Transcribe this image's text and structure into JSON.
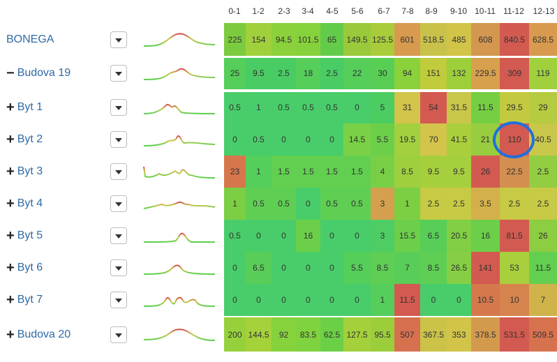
{
  "hours": [
    "0-1",
    "1-2",
    "2-3",
    "3-4",
    "4-5",
    "5-6",
    "6-7",
    "7-8",
    "8-9",
    "9-10",
    "10-11",
    "11-12",
    "12-13"
  ],
  "rows": [
    {
      "name": "BONEGA",
      "sign": "",
      "values": [
        "225",
        "154",
        "94.5",
        "101.5",
        "65",
        "149.5",
        "125.5",
        "601",
        "518.5",
        "485",
        "608",
        "840.5",
        "628.5"
      ],
      "colors": [
        "#7ccb3e",
        "#a0d13d",
        "#8bd13b",
        "#86d23c",
        "#62cc4a",
        "#9ac93b",
        "#a9cc3a",
        "#d89a4f",
        "#c9c24a",
        "#d2c449",
        "#d39750",
        "#d35a50",
        "#d89a4f"
      ]
    },
    {
      "name": "Budova 19",
      "sign": "−",
      "values": [
        "25",
        "9.5",
        "2.5",
        "18",
        "2.5",
        "22",
        "30",
        "94",
        "151",
        "132",
        "229.5",
        "309",
        "119"
      ],
      "colors": [
        "#55ce5a",
        "#49cc64",
        "#49cc64",
        "#55ce5a",
        "#49cc64",
        "#55ce5a",
        "#58cf54",
        "#8bd13b",
        "#c0cc3c",
        "#9dcf3a",
        "#d8a04d",
        "#d35a50",
        "#a0d13d"
      ]
    },
    {
      "name": "Byt 1",
      "sign": "+",
      "values": [
        "0.5",
        "1",
        "0.5",
        "0.5",
        "0.5",
        "0",
        "5",
        "31",
        "54",
        "31.5",
        "11.5",
        "29.5",
        "29"
      ],
      "colors": [
        "#49cd6a",
        "#49cd6a",
        "#49cd6a",
        "#49cd6a",
        "#49cd6a",
        "#49cd6a",
        "#4bcd62",
        "#d3c44b",
        "#d35a50",
        "#c9c74a",
        "#76ce43",
        "#c3ca40",
        "#b6cb3f"
      ]
    },
    {
      "name": "Byt 2",
      "sign": "+",
      "values": [
        "0",
        "0.5",
        "0",
        "0",
        "0",
        "14.5",
        "5.5",
        "19.5",
        "70",
        "41.5",
        "21",
        "110",
        "40.5"
      ],
      "colors": [
        "#49cd6a",
        "#49cd6a",
        "#49cd6a",
        "#49cd6a",
        "#49cd6a",
        "#7ad046",
        "#6ccf4a",
        "#a2d03f",
        "#d3c44b",
        "#a9cf3d",
        "#98cd3f",
        "#d35a50",
        "#c9c74a"
      ]
    },
    {
      "name": "Byt 3",
      "sign": "+",
      "values": [
        "23",
        "1",
        "1.5",
        "1.5",
        "1.5",
        "1.5",
        "4",
        "8.5",
        "9.5",
        "9.5",
        "26",
        "22.5",
        "2.5"
      ],
      "colors": [
        "#d7764c",
        "#55cf5c",
        "#62cf51",
        "#62cf51",
        "#62cf51",
        "#62cf51",
        "#78cf46",
        "#9ecf3f",
        "#a6cf3e",
        "#a6cf3e",
        "#d35a50",
        "#d38f4f",
        "#92cd42"
      ]
    },
    {
      "name": "Byt 4",
      "sign": "+",
      "values": [
        "1",
        "0.5",
        "0.5",
        "0",
        "0.5",
        "0.5",
        "3",
        "1",
        "2.5",
        "2.5",
        "3.5",
        "2.5",
        "2.5"
      ],
      "colors": [
        "#7ccf43",
        "#5fcf53",
        "#5fcf53",
        "#49cd6a",
        "#5fcf53",
        "#5fcf53",
        "#d4a04d",
        "#7ccf43",
        "#c7ca44",
        "#c7ca44",
        "#d3b04a",
        "#c7ca44",
        "#c7ca44"
      ]
    },
    {
      "name": "Byt 5",
      "sign": "+",
      "values": [
        "0.5",
        "0",
        "0",
        "16",
        "0",
        "0",
        "3",
        "15.5",
        "6.5",
        "20.5",
        "16",
        "81.5",
        "26"
      ],
      "colors": [
        "#49cd6a",
        "#49cd6a",
        "#49cd6a",
        "#6ccf4a",
        "#49cd6a",
        "#49cd6a",
        "#4ecd64",
        "#6ccf4a",
        "#58ce58",
        "#80cf44",
        "#6ccf4a",
        "#d35a50",
        "#8ccd42"
      ]
    },
    {
      "name": "Byt 6",
      "sign": "+",
      "values": [
        "0",
        "6.5",
        "0",
        "0",
        "0",
        "5.5",
        "8.5",
        "7",
        "8.5",
        "26.5",
        "141",
        "53",
        "11.5"
      ],
      "colors": [
        "#49cd6a",
        "#58ce58",
        "#49cd6a",
        "#49cd6a",
        "#49cd6a",
        "#55ce5a",
        "#5ecf54",
        "#58ce58",
        "#5ecf54",
        "#86cf44",
        "#d35a50",
        "#a9cf3d",
        "#62cf51"
      ]
    },
    {
      "name": "Byt 7",
      "sign": "+",
      "values": [
        "0",
        "0",
        "0",
        "0",
        "0",
        "0",
        "1",
        "11.5",
        "0",
        "0",
        "10.5",
        "10",
        "7"
      ],
      "colors": [
        "#49cd6a",
        "#49cd6a",
        "#49cd6a",
        "#49cd6a",
        "#49cd6a",
        "#49cd6a",
        "#55ce5c",
        "#d35a50",
        "#49cd6a",
        "#49cd6a",
        "#d5794d",
        "#d5844d",
        "#cfb34a"
      ]
    },
    {
      "name": "Budova 20",
      "sign": "+",
      "values": [
        "200",
        "144.5",
        "92",
        "83.5",
        "62.5",
        "127.5",
        "95.5",
        "507",
        "367.5",
        "353",
        "378.5",
        "531.5",
        "509.5"
      ],
      "colors": [
        "#96d13b",
        "#a5d13b",
        "#86d23c",
        "#7fd33e",
        "#6cd046",
        "#a3d03b",
        "#9ccd3b",
        "#d6704e",
        "#cac348",
        "#d2c449",
        "#d39a4e",
        "#d35a50",
        "#d7724e"
      ]
    }
  ]
}
